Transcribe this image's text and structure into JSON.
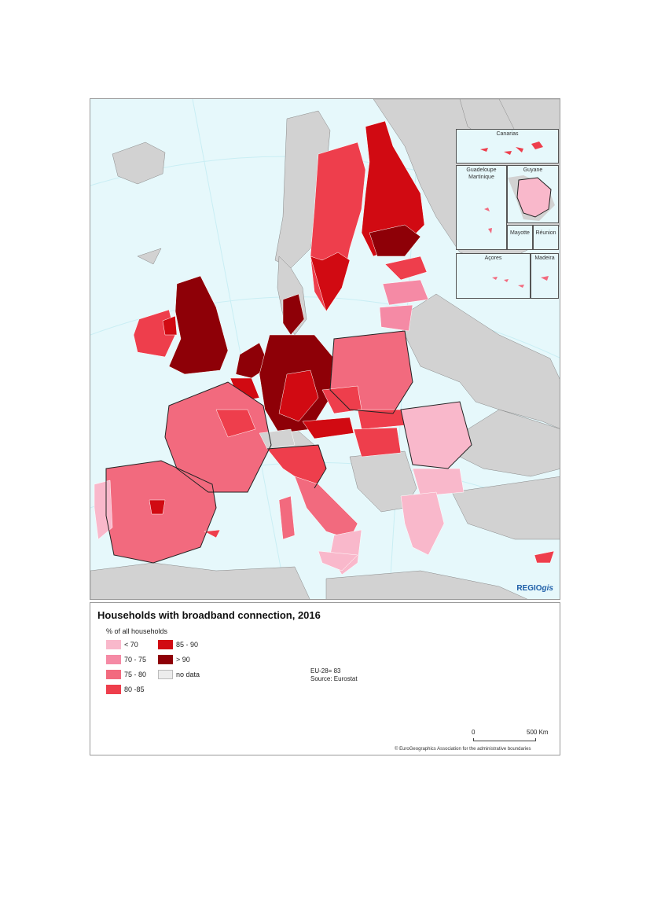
{
  "title": "Households with broadband connection, 2016",
  "legend": {
    "subtitle": "% of all households",
    "items": [
      {
        "label": "< 70",
        "color": "#f9b8cb"
      },
      {
        "label": "70 - 75",
        "color": "#f58aa5"
      },
      {
        "label": "75 - 80",
        "color": "#f26a7e"
      },
      {
        "label": "80 -85",
        "color": "#ee3e4c"
      },
      {
        "label": "85 - 90",
        "color": "#d10a12"
      },
      {
        "label": "> 90",
        "color": "#8e0007"
      },
      {
        "label": "no data",
        "color": "#ececec"
      }
    ]
  },
  "notes": {
    "line1": "EU-28= 83",
    "line2": "Source: Eurostat"
  },
  "scale": {
    "start": "0",
    "end": "500 Km"
  },
  "copyright": "© EuroGeographics Association for the administrative boundaries",
  "insets": {
    "canarias": "Canarias",
    "guadeloupe": "Guadeloupe",
    "martinique": "Martinique",
    "guyane": "Guyane",
    "mayotte": "Mayotte",
    "reunion": "Réunion",
    "acores": "Açores",
    "madeira": "Madeira"
  },
  "brand": {
    "main": "REGIO",
    "suffix": "gis"
  },
  "colors": {
    "sea": "#e6f8fb",
    "non_eu": "#d2d2d2",
    "border": "#222222"
  }
}
